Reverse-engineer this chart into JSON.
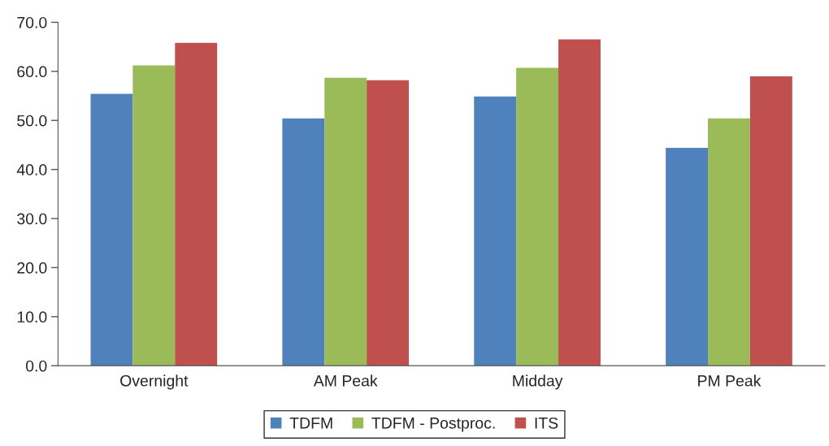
{
  "chart_data": {
    "type": "bar",
    "categories": [
      "Overnight",
      "AM Peak",
      "Midday",
      "PM Peak"
    ],
    "series": [
      {
        "name": "TDFM",
        "color": "#4f81bd",
        "values": [
          55.4,
          50.4,
          54.9,
          44.4
        ]
      },
      {
        "name": "TDFM - Postproc.",
        "color": "#9bbb59",
        "values": [
          61.2,
          58.7,
          60.7,
          50.4
        ]
      },
      {
        "name": "ITS",
        "color": "#c0504d",
        "values": [
          65.8,
          58.2,
          66.5,
          59.0
        ]
      }
    ],
    "ylim": [
      0,
      70
    ],
    "yticks": [
      {
        "value": 0,
        "label": "0.0"
      },
      {
        "value": 10,
        "label": "10.0"
      },
      {
        "value": 20,
        "label": "20.0"
      },
      {
        "value": 30,
        "label": "30.0"
      },
      {
        "value": 40,
        "label": "40.0"
      },
      {
        "value": 50,
        "label": "50.0"
      },
      {
        "value": 60,
        "label": "60.0"
      },
      {
        "value": 70,
        "label": "70.0"
      }
    ],
    "grid": false,
    "legend": "bottom"
  }
}
